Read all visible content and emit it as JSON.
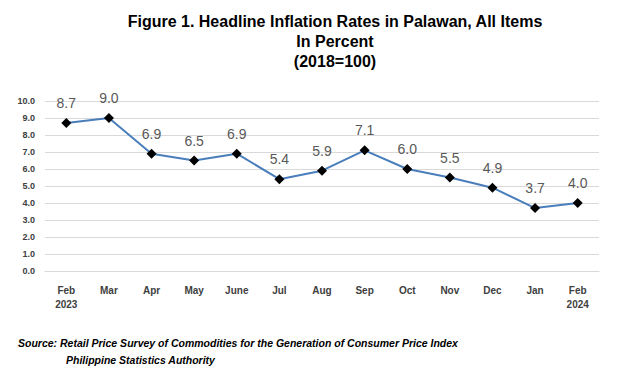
{
  "chart_data": {
    "type": "line",
    "title": "Figure 1. Headline Inflation Rates in Palawan, All Items\nIn Percent\n(2018=100)",
    "categories": [
      "Feb\n2023",
      "Mar",
      "Apr",
      "May",
      "June",
      "Jul",
      "Aug",
      "Sep",
      "Oct",
      "Nov",
      "Dec",
      "Jan",
      "Feb\n2024"
    ],
    "values": [
      8.7,
      9.0,
      6.9,
      6.5,
      6.9,
      5.4,
      5.9,
      7.1,
      6.0,
      5.5,
      4.9,
      3.7,
      4.0
    ],
    "value_labels": [
      "8.7",
      "9.0",
      "6.9",
      "6.5",
      "6.9",
      "5.4",
      "5.9",
      "7.1",
      "6.0",
      "5.5",
      "4.9",
      "3.7",
      "4.0"
    ],
    "color": "#4a7ebb",
    "marker": "diamond",
    "data_labels": true,
    "ylim": [
      0,
      10
    ],
    "yticks": [
      {
        "value": 0,
        "label": "0.0"
      },
      {
        "value": 1,
        "label": "1.0"
      },
      {
        "value": 2,
        "label": "2.0"
      },
      {
        "value": 3,
        "label": "3.0"
      },
      {
        "value": 4,
        "label": "4.0"
      },
      {
        "value": 5,
        "label": "5.0"
      },
      {
        "value": 6,
        "label": "6.0"
      },
      {
        "value": 7,
        "label": "7.0"
      },
      {
        "value": 8,
        "label": "8.0"
      },
      {
        "value": 9,
        "label": "9.0"
      },
      {
        "value": 10,
        "label": "10.0"
      }
    ],
    "grid": true,
    "annotations": [
      "Source: Retail Price Survey of Commodities for the Generation of Consumer Price Index",
      "Philippine Statistics Authority"
    ]
  }
}
